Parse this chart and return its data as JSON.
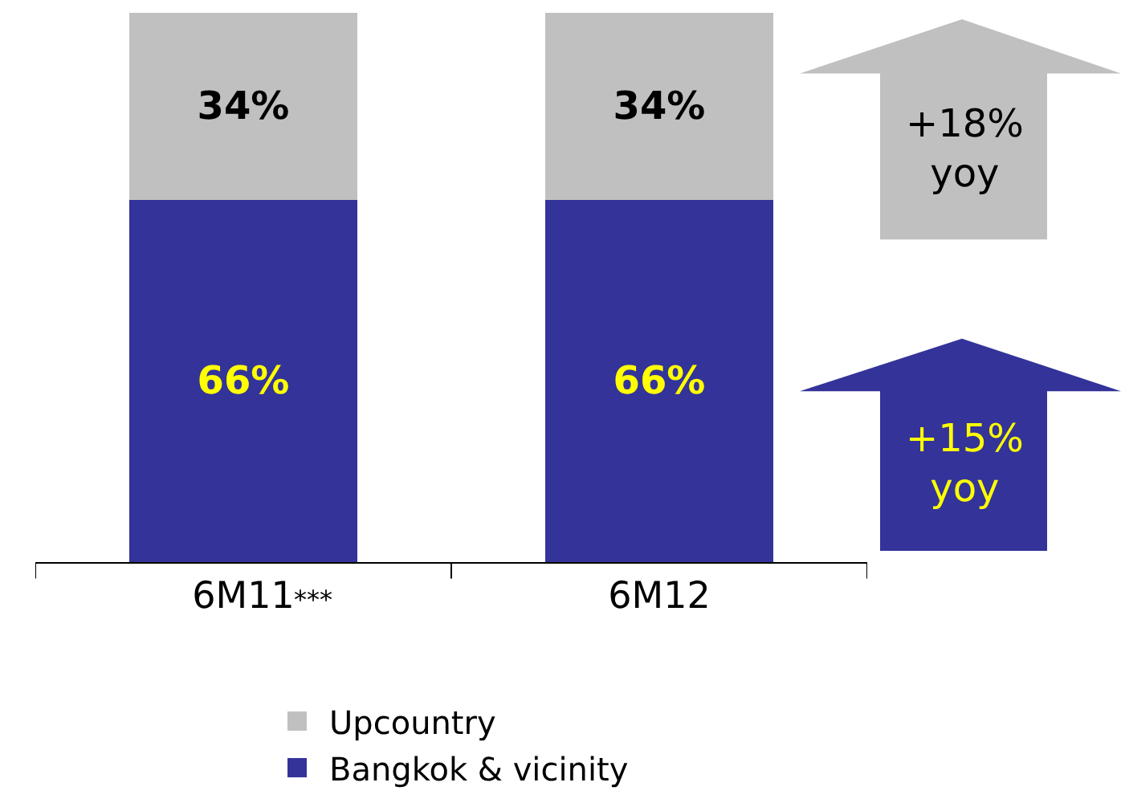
{
  "chart_data": {
    "type": "bar",
    "stacked": true,
    "categories": [
      "6M11",
      "6M12"
    ],
    "series": [
      {
        "name": "Bangkok & vicinity",
        "color": "#333399",
        "values": [
          66,
          66
        ],
        "value_labels": [
          "66%",
          "66%"
        ]
      },
      {
        "name": "Upcountry",
        "color": "#c0c0c0",
        "values": [
          34,
          34
        ],
        "value_labels": [
          "34%",
          "34%"
        ]
      }
    ],
    "annotations": [
      "***",
      "+18%\nyoy",
      "+15%\nyoy"
    ],
    "legend": "bottom"
  }
}
